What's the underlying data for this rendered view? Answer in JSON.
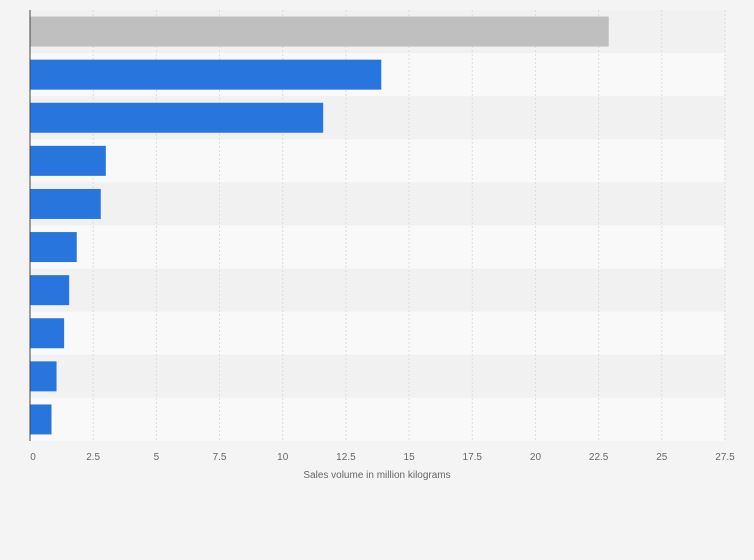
{
  "chart_data": {
    "type": "bar",
    "orientation": "horizontal",
    "title": "",
    "xlabel": "Sales volume in million kilograms",
    "ylabel": "",
    "categories": [
      "",
      "",
      "",
      "",
      "",
      "",
      "",
      "",
      "",
      ""
    ],
    "values": [
      22.9,
      13.9,
      11.6,
      3.0,
      2.8,
      1.85,
      1.55,
      1.35,
      1.05,
      0.85
    ],
    "highlight_index": 0,
    "xlim": [
      0,
      27.5
    ],
    "xticks": [
      0,
      2.5,
      5,
      7.5,
      10,
      12.5,
      15,
      17.5,
      20,
      22.5,
      25,
      27.5
    ],
    "xtick_labels": [
      "0",
      "2.5",
      "5",
      "7.5",
      "10",
      "12.5",
      "15",
      "17.5",
      "20",
      "22.5",
      "25",
      "27.5"
    ],
    "grid": true,
    "colors": {
      "bar": "#2876dd",
      "highlight": "#bfbfbf",
      "band_light": "#f9f9f9",
      "band_dark": "#f1f1f1",
      "gridline": "#dcdcdc",
      "axis": "#444444",
      "label": "#666666"
    }
  }
}
